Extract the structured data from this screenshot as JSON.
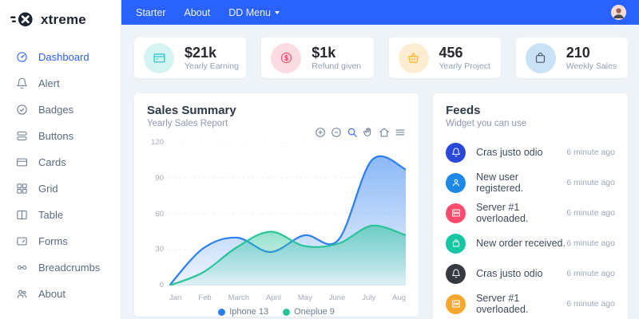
{
  "brand": {
    "name": "xtreme"
  },
  "navbar": {
    "links": [
      {
        "label": "Starter"
      },
      {
        "label": "About"
      },
      {
        "label": "DD Menu"
      }
    ]
  },
  "sidebar": {
    "items": [
      {
        "label": "Dashboard",
        "icon": "speedometer-icon",
        "active": true
      },
      {
        "label": "Alert",
        "icon": "bell-icon",
        "active": false
      },
      {
        "label": "Badges",
        "icon": "check-circle-icon",
        "active": false
      },
      {
        "label": "Buttons",
        "icon": "layers-icon",
        "active": false
      },
      {
        "label": "Cards",
        "icon": "credit-card-icon",
        "active": false
      },
      {
        "label": "Grid",
        "icon": "grid-icon",
        "active": false
      },
      {
        "label": "Table",
        "icon": "table-icon",
        "active": false
      },
      {
        "label": "Forms",
        "icon": "form-icon",
        "active": false
      },
      {
        "label": "Breadcrumbs",
        "icon": "link-icon",
        "active": false
      },
      {
        "label": "About",
        "icon": "users-icon",
        "active": false
      }
    ]
  },
  "stats": [
    {
      "value": "$21k",
      "label": "Yearly Earning",
      "icon": "wallet-icon",
      "icon_color": "#21c1d6",
      "icon_bg": "#d4f3f1"
    },
    {
      "value": "$1k",
      "label": "Refund given",
      "icon": "dollar-icon",
      "icon_color": "#fc4b6c",
      "icon_bg": "#fbdce2"
    },
    {
      "value": "456",
      "label": "Yearly Project",
      "icon": "basket-icon",
      "icon_color": "#ffb22b",
      "icon_bg": "#fcecd2"
    },
    {
      "value": "210",
      "label": "Weekly Sales",
      "icon": "shopping-bag-icon",
      "icon_color": "#4f5b68",
      "icon_bg": "#c9e2f6"
    }
  ],
  "sales_card": {
    "title": "Sales Summary",
    "subtitle": "Yearly Sales Report",
    "toolbar": [
      "zoom-in",
      "zoom-out",
      "selection-zoom",
      "pan",
      "home",
      "menu"
    ]
  },
  "chart_data": {
    "type": "area",
    "title": "Sales Summary",
    "categories": [
      "Jan",
      "Feb",
      "March",
      "April",
      "May",
      "June",
      "July",
      "Aug"
    ],
    "series": [
      {
        "name": "Iphone 13",
        "color": "#2d7ff0",
        "values": [
          0,
          31,
          40,
          28,
          42,
          38,
          105,
          97
        ]
      },
      {
        "name": "Oneplue 9",
        "color": "#2bc49a",
        "values": [
          0,
          11,
          32,
          45,
          33,
          35,
          50,
          42
        ]
      }
    ],
    "xlabel": "",
    "ylabel": "",
    "ylim": [
      0,
      120
    ],
    "yticks": [
      120,
      90,
      60,
      30,
      0
    ],
    "grid": "horizontal-dotted",
    "legend_position": "bottom"
  },
  "feeds": {
    "title": "Feeds",
    "subtitle": "Widget you can use",
    "items": [
      {
        "text": "Cras justo odio",
        "time": "6 minute ago",
        "icon": "bell-icon",
        "color": "#2948d8"
      },
      {
        "text": "New user registered.",
        "time": "6 minute ago",
        "icon": "user-icon",
        "color": "#1e88e5"
      },
      {
        "text": "Server #1 overloaded.",
        "time": "6 minute ago",
        "icon": "server-icon",
        "color": "#fc4b6c"
      },
      {
        "text": "New order received.",
        "time": "6 minute ago",
        "icon": "shopping-bag-icon",
        "color": "#16c7a6"
      },
      {
        "text": "Cras justo odio",
        "time": "6 minute ago",
        "icon": "bell-icon",
        "color": "#343a40"
      },
      {
        "text": "Server #1 overloaded.",
        "time": "6 minute ago",
        "icon": "server-icon",
        "color": "#f3a72e"
      }
    ]
  }
}
